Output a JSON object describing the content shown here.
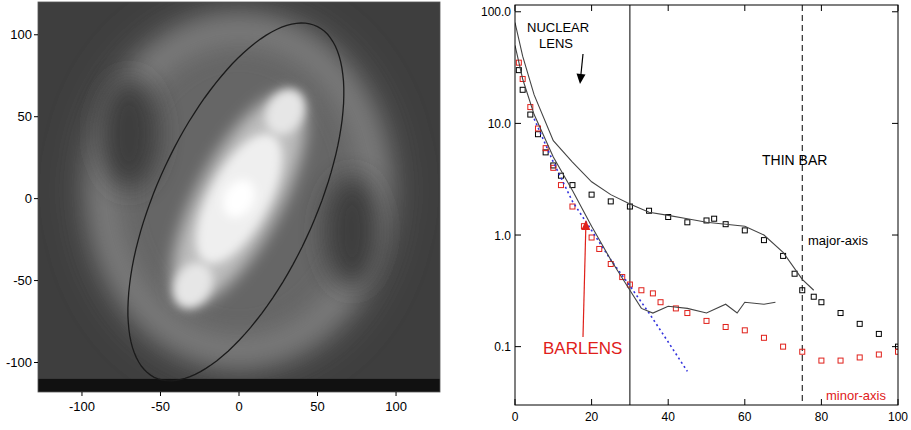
{
  "chart_data": [
    {
      "type": "image",
      "xlim": [
        -128,
        128
      ],
      "ylim": [
        -118,
        120
      ],
      "xticks": [
        -100,
        -50,
        0,
        50,
        100
      ],
      "yticks": [
        -100,
        -50,
        0,
        50,
        100
      ]
    },
    {
      "type": "scatter",
      "log": "y",
      "xlim": [
        0,
        100
      ],
      "ylim": [
        0.03,
        115
      ],
      "xticks": [
        0,
        20,
        40,
        60,
        80,
        100
      ],
      "yticks": [
        0.1,
        {
          "value": 1,
          "label": "1.0"
        },
        {
          "value": 10,
          "label": "10.0"
        },
        {
          "value": 100,
          "label": "100.0"
        }
      ],
      "series": [
        {
          "type": "scatter",
          "marker": "square",
          "color": "#000000",
          "x": [
            1,
            2,
            4,
            6,
            8,
            10,
            12,
            15,
            20,
            25,
            30,
            35,
            40,
            45,
            50,
            52,
            55,
            60,
            65,
            70,
            73,
            75,
            78,
            80,
            85,
            90,
            95,
            100
          ],
          "values": [
            30,
            20,
            12,
            8,
            5.5,
            4.2,
            3.4,
            2.8,
            2.3,
            2.0,
            1.8,
            1.65,
            1.45,
            1.3,
            1.35,
            1.4,
            1.25,
            1.1,
            0.9,
            0.65,
            0.45,
            0.32,
            0.28,
            0.25,
            0.2,
            0.16,
            0.13,
            0.1
          ]
        },
        {
          "type": "scatter",
          "marker": "square",
          "color": "#e0201a",
          "x": [
            1,
            2,
            4,
            6,
            8,
            10,
            12,
            15,
            18,
            20,
            22,
            25,
            28,
            30,
            33,
            36,
            38,
            42,
            45,
            50,
            55,
            60,
            65,
            70,
            75,
            80,
            85,
            90,
            95,
            100
          ],
          "values": [
            35,
            25,
            14,
            9,
            6,
            4,
            2.8,
            1.8,
            1.2,
            0.95,
            0.75,
            0.55,
            0.42,
            0.36,
            0.32,
            0.3,
            0.25,
            0.22,
            0.2,
            0.17,
            0.15,
            0.14,
            0.12,
            0.1,
            0.09,
            0.075,
            0.075,
            0.08,
            0.085,
            0.09
          ]
        },
        {
          "type": "line",
          "line_style": "dotted",
          "color": "#3333dd",
          "x": [
            5,
            10,
            15,
            20,
            25,
            30,
            35,
            40,
            45
          ],
          "values": [
            11,
            4.5,
            2,
            1.1,
            0.6,
            0.35,
            0.2,
            0.11,
            0.06
          ]
        },
        {
          "type": "line",
          "line_style": "solid",
          "color": "#444444",
          "x": [
            0,
            2,
            5,
            10,
            15,
            20,
            25,
            30,
            35,
            40,
            45,
            50,
            55,
            60,
            65,
            70,
            75,
            78
          ],
          "values": [
            80,
            40,
            18,
            7,
            4.5,
            3,
            2.3,
            1.9,
            1.6,
            1.5,
            1.4,
            1.3,
            1.25,
            1.2,
            1.0,
            0.7,
            0.4,
            0.32
          ]
        },
        {
          "type": "line",
          "line_style": "solid",
          "color": "#444444",
          "x": [
            0,
            2,
            5,
            10,
            15,
            20,
            25,
            30,
            33,
            36,
            40,
            45,
            50,
            55,
            58,
            60,
            65,
            68
          ],
          "values": [
            50,
            25,
            12,
            5,
            2.5,
            1.2,
            0.6,
            0.32,
            0.22,
            0.2,
            0.23,
            0.22,
            0.2,
            0.24,
            0.2,
            0.25,
            0.24,
            0.25
          ]
        }
      ],
      "vlines": [
        {
          "x": 30,
          "line_style": "solid"
        },
        {
          "x": 75,
          "line_style": "dashed"
        }
      ],
      "annotations": [
        {
          "text": "NUCLEAR LENS",
          "color": "#000000"
        },
        {
          "text": "THIN BAR",
          "color": "#000000"
        },
        {
          "text": "major-axis",
          "color": "#000000"
        },
        {
          "text": "BARLENS",
          "color": "#e0201a"
        },
        {
          "text": "minor-axis",
          "color": "#e0201a"
        }
      ]
    }
  ]
}
